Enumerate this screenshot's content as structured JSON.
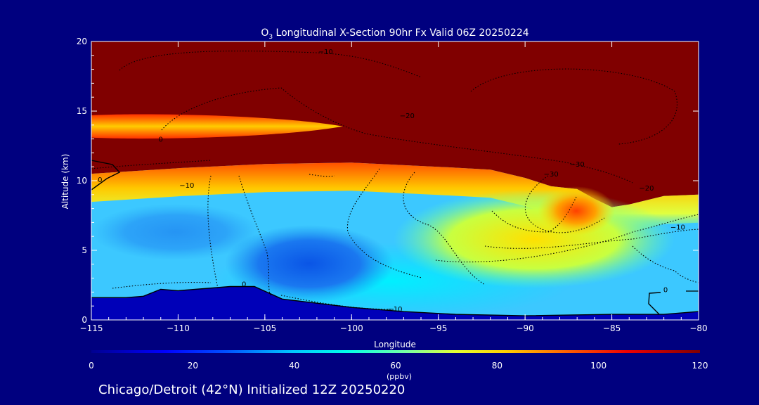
{
  "chart_data": {
    "type": "heatmap",
    "title_main": "O",
    "title_sub": "3",
    "title_rest": " Longitudinal X-Section 90hr  Fx Valid 06Z 20250224",
    "xlabel": "Longitude",
    "ylabel": "Altitude (km)",
    "xlim": [
      -115,
      -80
    ],
    "ylim": [
      0,
      20
    ],
    "x_ticks": [
      -115,
      -110,
      -105,
      -100,
      -95,
      -90,
      -85,
      -80
    ],
    "x_tick_labels": [
      "−115",
      "−110",
      "−105",
      "−100",
      "−95",
      "−90",
      "−85",
      "−80"
    ],
    "y_ticks": [
      0,
      5,
      10,
      15,
      20
    ],
    "y_tick_labels": [
      "0",
      "5",
      "10",
      "15",
      "20"
    ],
    "colorbar": {
      "label": "(ppbv)",
      "range": [
        0,
        120
      ],
      "ticks": [
        0,
        20,
        40,
        60,
        80,
        100,
        120
      ],
      "tick_labels": [
        "0",
        "20",
        "40",
        "60",
        "80",
        "100",
        "120"
      ]
    },
    "contour_labels": [
      {
        "text": "−10",
        "lon": -101.5,
        "alt": 19.1
      },
      {
        "text": "−20",
        "lon": -96.8,
        "alt": 14.5
      },
      {
        "text": "0",
        "lon": -111.0,
        "alt": 12.8
      },
      {
        "text": "−10",
        "lon": -109.5,
        "alt": 9.5
      },
      {
        "text": "0",
        "lon": -114.5,
        "alt": 9.9
      },
      {
        "text": "−30",
        "lon": -87.0,
        "alt": 11.0
      },
      {
        "text": "−30",
        "lon": -88.5,
        "alt": 10.3
      },
      {
        "text": "−20",
        "lon": -83.0,
        "alt": 9.3
      },
      {
        "text": "−10",
        "lon": -81.2,
        "alt": 6.5
      },
      {
        "text": "0",
        "lon": -81.9,
        "alt": 2.0
      },
      {
        "text": "0",
        "lon": -106.2,
        "alt": 2.4
      },
      {
        "text": "−10",
        "lon": -97.5,
        "alt": 0.6
      }
    ],
    "terrain_profile": [
      {
        "lon": -115,
        "alt": 1.6
      },
      {
        "lon": -113,
        "alt": 1.6
      },
      {
        "lon": -112,
        "alt": 1.7
      },
      {
        "lon": -111,
        "alt": 2.2
      },
      {
        "lon": -110,
        "alt": 2.1
      },
      {
        "lon": -108,
        "alt": 2.3
      },
      {
        "lon": -107,
        "alt": 2.4
      },
      {
        "lon": -105.6,
        "alt": 2.4
      },
      {
        "lon": -104,
        "alt": 1.5
      },
      {
        "lon": -102,
        "alt": 1.2
      },
      {
        "lon": -100,
        "alt": 0.9
      },
      {
        "lon": -97,
        "alt": 0.6
      },
      {
        "lon": -94,
        "alt": 0.4
      },
      {
        "lon": -90,
        "alt": 0.3
      },
      {
        "lon": -85,
        "alt": 0.4
      },
      {
        "lon": -82,
        "alt": 0.4
      },
      {
        "lon": -80,
        "alt": 0.6
      }
    ],
    "tropopause_profile": [
      {
        "lon": -115,
        "alt": 10.5
      },
      {
        "lon": -110,
        "alt": 10.9
      },
      {
        "lon": -105,
        "alt": 11.2
      },
      {
        "lon": -100,
        "alt": 11.3
      },
      {
        "lon": -95,
        "alt": 11.0
      },
      {
        "lon": -92,
        "alt": 10.8
      },
      {
        "lon": -90,
        "alt": 10.2
      },
      {
        "lon": -88.5,
        "alt": 9.6
      },
      {
        "lon": -87,
        "alt": 9.4
      },
      {
        "lon": -86,
        "alt": 8.7
      },
      {
        "lon": -85,
        "alt": 8.1
      },
      {
        "lon": -84,
        "alt": 8.3
      },
      {
        "lon": -82,
        "alt": 8.9
      },
      {
        "lon": -80,
        "alt": 9.0
      }
    ],
    "upper_band": {
      "lon_start": -115,
      "lon_end": -100.5,
      "alt_center": 13.9,
      "thickness": 0.8
    }
  },
  "footer": {
    "initialized_text": "Chicago/Detroit (42°N) Initialized 12Z 20250220"
  },
  "colors": {
    "background": "#00007f",
    "stratosphere": "#800000",
    "text": "#ffffff"
  }
}
